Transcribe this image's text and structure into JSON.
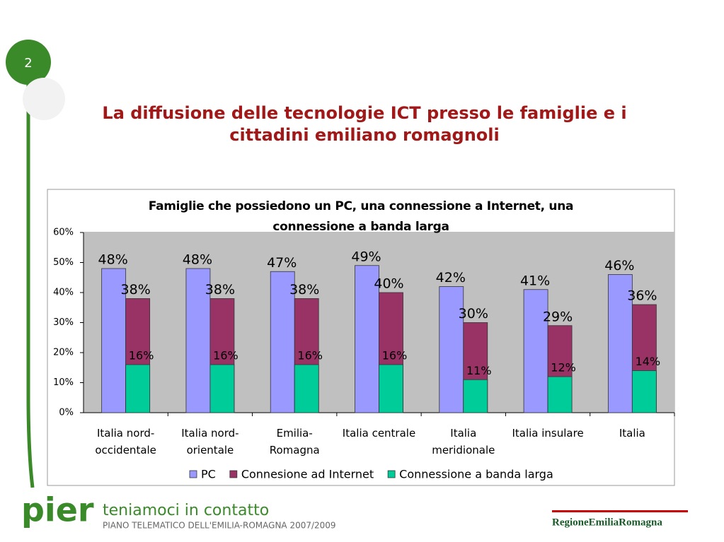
{
  "slide": {
    "page_number": "2",
    "title": "La diffusione delle tecnologie ICT presso le famiglie e i cittadini emiliano romagnoli",
    "footer_logo": "pier",
    "footer_tagline": "teniamoci in contatto",
    "footer_subtitle": "PIANO TELEMATICO DELL'EMILIA-ROMAGNA 2007/2009",
    "region_logo": "RegioneEmiliaRomagna"
  },
  "chart_data": {
    "type": "bar",
    "title": "Famiglie che possiedono un PC, una connessione a Internet, una connessione a banda larga",
    "categories": [
      "Italia nord-occidentale",
      "Italia nord-orientale",
      "Emilia-Romagna",
      "Italia centrale",
      "Italia meridionale",
      "Italia insulare",
      "Italia"
    ],
    "series": [
      {
        "name": "PC",
        "color": "#9999ff",
        "values": [
          48,
          48,
          47,
          49,
          42,
          41,
          46
        ],
        "value_labels": [
          "48%",
          "48%",
          "47%",
          "49%",
          "42%",
          "41%",
          "46%"
        ]
      },
      {
        "name": "Connesione ad Internet",
        "color": "#993366",
        "values": [
          38,
          38,
          38,
          40,
          30,
          29,
          36
        ],
        "value_labels": [
          "38%",
          "38%",
          "38%",
          "40%",
          "30%",
          "29%",
          "36%"
        ]
      },
      {
        "name": "Connessione a banda larga",
        "color": "#00cc99",
        "values": [
          16,
          16,
          16,
          16,
          11,
          12,
          14
        ],
        "value_labels": [
          "16%",
          "16%",
          "16%",
          "16%",
          "11%",
          "12%",
          "14%"
        ]
      }
    ],
    "ylim": [
      0,
      60
    ],
    "yticks": [
      {
        "value": 0,
        "label": "0%"
      },
      {
        "value": 10,
        "label": "10%"
      },
      {
        "value": 20,
        "label": "20%"
      },
      {
        "value": 30,
        "label": "30%"
      },
      {
        "value": 40,
        "label": "40%"
      },
      {
        "value": 50,
        "label": "50%"
      },
      {
        "value": 60,
        "label": "60%"
      }
    ],
    "grid": false,
    "legend": "bottom"
  }
}
